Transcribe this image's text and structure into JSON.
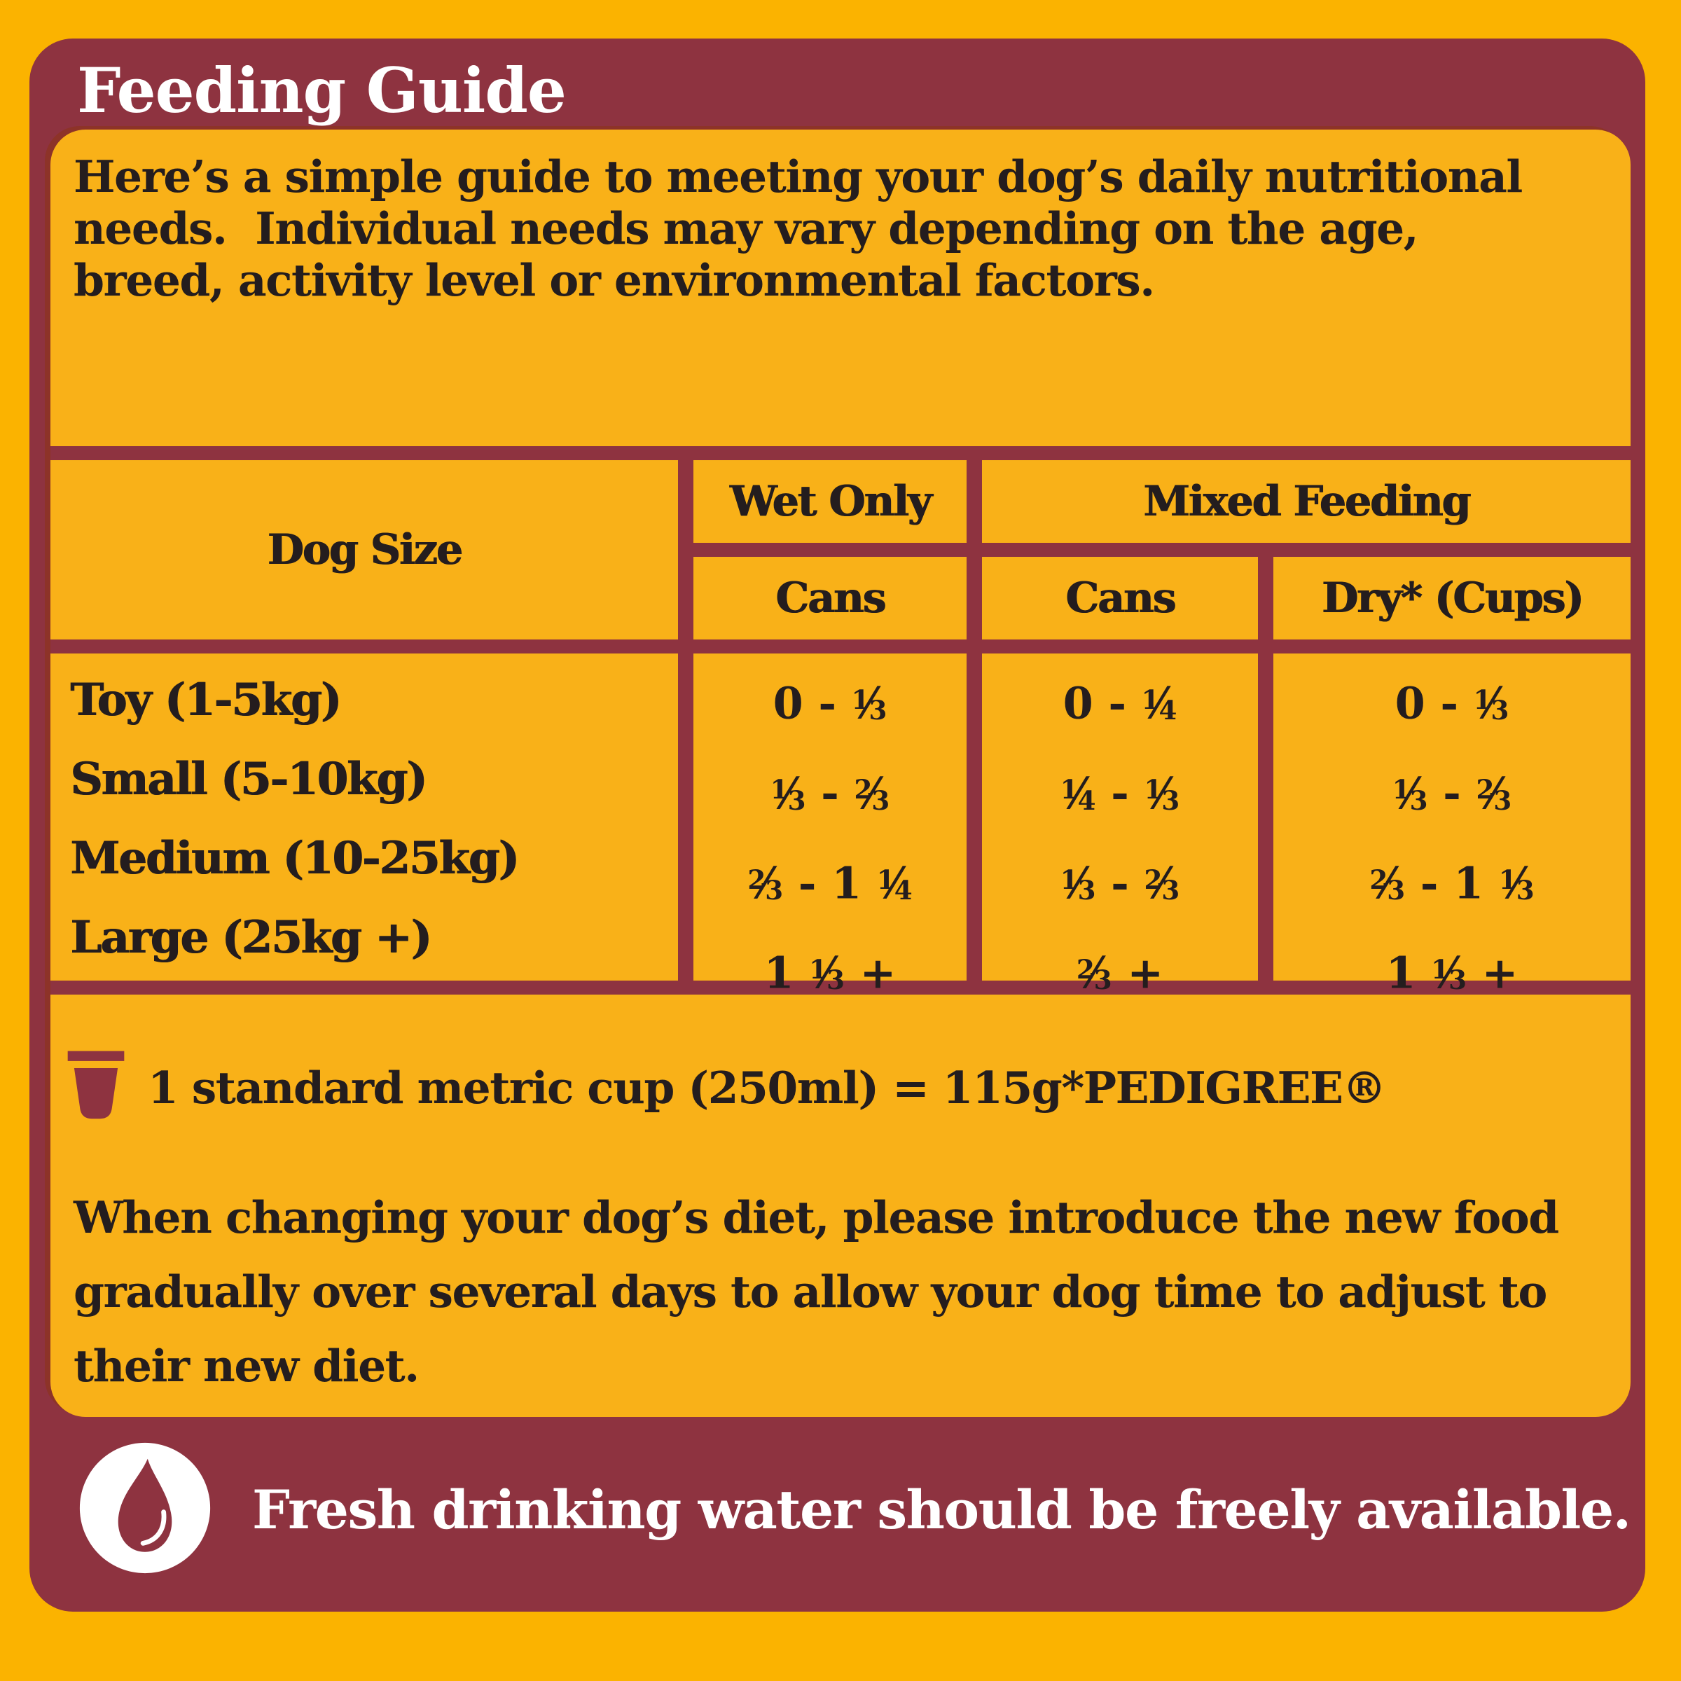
{
  "brand_colors": {
    "outer_yellow": "#FBB300",
    "panel_maroon": "#8E3340",
    "inner_yellow": "#F9B118",
    "text_dark": "#241D1E",
    "white": "#FFFFFF"
  },
  "title": "Feeding Guide",
  "intro": {
    "lines": [
      "Here’s a simple guide to meeting your dog’s daily nutritional",
      "needs.  Individual needs may vary depending on the age,",
      "breed, activity level or environmental factors."
    ]
  },
  "table": {
    "headers": {
      "dog_size": "Dog Size",
      "wet_only": "Wet Only",
      "mixed_feeding": "Mixed Feeding",
      "wet_cans": "Cans",
      "mixed_cans": "Cans",
      "mixed_dry": "Dry* (Cups)"
    },
    "rows": [
      {
        "size": "Toy (1-5kg)",
        "wet_cans": "0 - 1/3",
        "mixed_cans": "0 - 1/4",
        "dry_cups": "0 - 1/3"
      },
      {
        "size": "Small (5-10kg)",
        "wet_cans": "1/3 - 2/3",
        "mixed_cans": "1/4 - 1/3",
        "dry_cups": "1/3 - 2/3"
      },
      {
        "size": "Medium (10-25kg)",
        "wet_cans": "2/3 - 1 1/4",
        "mixed_cans": "1/3 - 2/3",
        "dry_cups": "2/3 - 1 1/3"
      },
      {
        "size": "Large (25kg +)",
        "wet_cans": "1 1/3 +",
        "mixed_cans": "2/3 +",
        "dry_cups": "1 1/3 +"
      }
    ]
  },
  "cup_note": {
    "icon": "measuring-cup-icon",
    "text": "1 standard metric cup (250ml) = 115g*PEDIGREE®"
  },
  "transition_note": {
    "lines": [
      "When changing your dog’s diet, please introduce the new food",
      "gradually over several days to allow your dog time to adjust to",
      "their new diet."
    ]
  },
  "water_note": {
    "icon": "water-droplet-icon",
    "text": "Fresh drinking water should be freely available."
  }
}
